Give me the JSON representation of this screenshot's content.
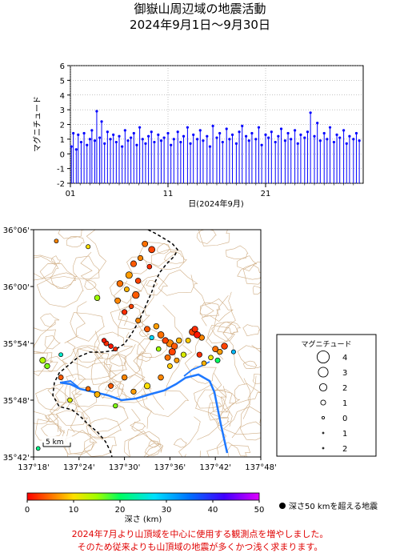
{
  "title": "御嶽山周辺域の地震活動",
  "period": "2024年9月1日～9月30日",
  "notes": [
    "2024年7月より山頂域を中心に使用する観測点を増やしました。",
    "そのため従来よりも山頂域の地震が多くかつ浅く求まります。"
  ],
  "colors": {
    "stem": "#0000ff",
    "river": "#1e78ff",
    "contour": "#c8a070",
    "note": "#e00000"
  },
  "chart_data": [
    {
      "type": "scatter",
      "name": "magnitude-time",
      "ylabel": "マグニチュード",
      "xlabel": "日(2024年9月)",
      "ylim": [
        -2,
        6
      ],
      "xlim": [
        1,
        31
      ],
      "y_ticks": [
        "-2",
        "-1",
        "0",
        "1",
        "2",
        "3",
        "4",
        "5",
        "6"
      ],
      "x_ticks": [
        "01",
        "11",
        "21"
      ],
      "x_tick_values": [
        1,
        11,
        21
      ],
      "events": [
        {
          "x": 1.1,
          "y": 0.5
        },
        {
          "x": 1.3,
          "y": 1.4
        },
        {
          "x": 1.6,
          "y": 0.3
        },
        {
          "x": 1.8,
          "y": 1.3
        },
        {
          "x": 2.1,
          "y": 0.8
        },
        {
          "x": 2.4,
          "y": 1.4
        },
        {
          "x": 2.7,
          "y": 0.6
        },
        {
          "x": 3.0,
          "y": 1.0
        },
        {
          "x": 3.2,
          "y": 1.6
        },
        {
          "x": 3.5,
          "y": 0.9
        },
        {
          "x": 3.7,
          "y": 2.9
        },
        {
          "x": 4.0,
          "y": 1.1
        },
        {
          "x": 4.2,
          "y": 2.2
        },
        {
          "x": 4.5,
          "y": 0.7
        },
        {
          "x": 4.8,
          "y": 1.5
        },
        {
          "x": 5.1,
          "y": 1.0
        },
        {
          "x": 5.4,
          "y": 1.3
        },
        {
          "x": 5.7,
          "y": 0.8
        },
        {
          "x": 6.0,
          "y": 1.2
        },
        {
          "x": 6.3,
          "y": 0.5
        },
        {
          "x": 6.6,
          "y": 1.6
        },
        {
          "x": 6.9,
          "y": 0.9
        },
        {
          "x": 7.2,
          "y": 1.1
        },
        {
          "x": 7.5,
          "y": 1.4
        },
        {
          "x": 7.8,
          "y": 0.6
        },
        {
          "x": 8.1,
          "y": 1.8
        },
        {
          "x": 8.4,
          "y": 1.0
        },
        {
          "x": 8.7,
          "y": 0.7
        },
        {
          "x": 9.0,
          "y": 1.2
        },
        {
          "x": 9.3,
          "y": 1.5
        },
        {
          "x": 9.6,
          "y": 0.8
        },
        {
          "x": 10.0,
          "y": 1.3
        },
        {
          "x": 10.3,
          "y": 0.9
        },
        {
          "x": 10.6,
          "y": 1.1
        },
        {
          "x": 11.0,
          "y": 1.4
        },
        {
          "x": 11.3,
          "y": 0.6
        },
        {
          "x": 11.6,
          "y": 1.0
        },
        {
          "x": 12.0,
          "y": 1.5
        },
        {
          "x": 12.3,
          "y": 0.8
        },
        {
          "x": 12.6,
          "y": 1.2
        },
        {
          "x": 13.0,
          "y": 1.8
        },
        {
          "x": 13.3,
          "y": 0.7
        },
        {
          "x": 13.6,
          "y": 1.3
        },
        {
          "x": 14.0,
          "y": 1.0
        },
        {
          "x": 14.3,
          "y": 1.6
        },
        {
          "x": 14.6,
          "y": 0.9
        },
        {
          "x": 15.0,
          "y": 1.2
        },
        {
          "x": 15.3,
          "y": 0.5
        },
        {
          "x": 15.6,
          "y": 1.9
        },
        {
          "x": 16.0,
          "y": 1.1
        },
        {
          "x": 16.3,
          "y": 1.4
        },
        {
          "x": 16.6,
          "y": 0.8
        },
        {
          "x": 17.0,
          "y": 1.7
        },
        {
          "x": 17.3,
          "y": 1.0
        },
        {
          "x": 17.6,
          "y": 1.3
        },
        {
          "x": 18.0,
          "y": 0.7
        },
        {
          "x": 18.3,
          "y": 1.5
        },
        {
          "x": 18.6,
          "y": 1.9
        },
        {
          "x": 19.0,
          "y": 1.2
        },
        {
          "x": 19.3,
          "y": 0.9
        },
        {
          "x": 19.6,
          "y": 1.4
        },
        {
          "x": 20.0,
          "y": 1.0
        },
        {
          "x": 20.3,
          "y": 1.8
        },
        {
          "x": 20.6,
          "y": 0.6
        },
        {
          "x": 21.0,
          "y": 1.3
        },
        {
          "x": 21.3,
          "y": 1.1
        },
        {
          "x": 21.6,
          "y": 1.5
        },
        {
          "x": 22.0,
          "y": 0.8
        },
        {
          "x": 22.3,
          "y": 1.2
        },
        {
          "x": 22.6,
          "y": 1.7
        },
        {
          "x": 23.0,
          "y": 0.9
        },
        {
          "x": 23.3,
          "y": 1.4
        },
        {
          "x": 23.6,
          "y": 1.0
        },
        {
          "x": 24.0,
          "y": 1.6
        },
        {
          "x": 24.3,
          "y": 0.7
        },
        {
          "x": 24.6,
          "y": 1.3
        },
        {
          "x": 25.0,
          "y": 1.1
        },
        {
          "x": 25.3,
          "y": 1.5
        },
        {
          "x": 25.6,
          "y": 2.8
        },
        {
          "x": 26.0,
          "y": 1.2
        },
        {
          "x": 26.3,
          "y": 2.1
        },
        {
          "x": 26.6,
          "y": 0.9
        },
        {
          "x": 27.0,
          "y": 1.4
        },
        {
          "x": 27.3,
          "y": 1.0
        },
        {
          "x": 27.6,
          "y": 1.8
        },
        {
          "x": 28.0,
          "y": 0.8
        },
        {
          "x": 28.3,
          "y": 1.3
        },
        {
          "x": 28.6,
          "y": 1.1
        },
        {
          "x": 29.0,
          "y": 1.6
        },
        {
          "x": 29.3,
          "y": 0.7
        },
        {
          "x": 29.6,
          "y": 1.2
        },
        {
          "x": 30.0,
          "y": 1.0
        },
        {
          "x": 30.3,
          "y": 1.4
        },
        {
          "x": 30.6,
          "y": 0.9
        }
      ]
    },
    {
      "type": "scatter",
      "name": "epicenter-map",
      "lon_range": [
        137.3,
        137.8
      ],
      "lat_range": [
        35.7,
        36.1
      ],
      "x_ticks": [
        "137°18'",
        "137°24'",
        "137°30'",
        "137°36'",
        "137°42'",
        "137°48'"
      ],
      "x_tick_values": [
        137.3,
        137.4,
        137.5,
        137.6,
        137.7,
        137.8
      ],
      "y_ticks": [
        "35°42'",
        "35°48'",
        "35°54'",
        "36°00'",
        "36°06'"
      ],
      "y_tick_values": [
        35.7,
        35.8,
        35.9,
        36.0,
        36.1
      ],
      "scale_bar": "5 km",
      "events": [
        {
          "lon": 137.545,
          "lat": 36.075,
          "depth": 5,
          "mag": 1.3
        },
        {
          "lon": 137.56,
          "lat": 36.065,
          "depth": 3,
          "mag": 1.6
        },
        {
          "lon": 137.535,
          "lat": 36.05,
          "depth": 6,
          "mag": 1.1
        },
        {
          "lon": 137.52,
          "lat": 36.04,
          "depth": 4,
          "mag": 1.4
        },
        {
          "lon": 137.555,
          "lat": 36.035,
          "depth": 2,
          "mag": 0.9
        },
        {
          "lon": 137.51,
          "lat": 36.02,
          "depth": 7,
          "mag": 1.7
        },
        {
          "lon": 137.53,
          "lat": 36.01,
          "depth": 3,
          "mag": 1.2
        },
        {
          "lon": 137.49,
          "lat": 36.005,
          "depth": 5,
          "mag": 1.5
        },
        {
          "lon": 137.505,
          "lat": 35.995,
          "depth": 8,
          "mag": 1.0
        },
        {
          "lon": 137.525,
          "lat": 35.985,
          "depth": 4,
          "mag": 1.8
        },
        {
          "lon": 137.485,
          "lat": 35.975,
          "depth": 6,
          "mag": 1.3
        },
        {
          "lon": 137.515,
          "lat": 35.965,
          "depth": 3,
          "mag": 0.8
        },
        {
          "lon": 137.5,
          "lat": 35.955,
          "depth": 2,
          "mag": 1.1
        },
        {
          "lon": 137.42,
          "lat": 36.07,
          "depth": 10,
          "mag": 0.7
        },
        {
          "lon": 137.35,
          "lat": 36.08,
          "depth": 6,
          "mag": 0.6
        },
        {
          "lon": 137.44,
          "lat": 35.98,
          "depth": 15,
          "mag": 1.2
        },
        {
          "lon": 137.32,
          "lat": 35.87,
          "depth": 14,
          "mag": 1.4
        },
        {
          "lon": 137.33,
          "lat": 35.86,
          "depth": 16,
          "mag": 1.1
        },
        {
          "lon": 137.36,
          "lat": 35.88,
          "depth": 25,
          "mag": 0.6
        },
        {
          "lon": 137.46,
          "lat": 35.9,
          "depth": 2,
          "mag": 1.0
        },
        {
          "lon": 137.47,
          "lat": 35.895,
          "depth": 1,
          "mag": 0.9
        },
        {
          "lon": 137.455,
          "lat": 35.905,
          "depth": 1,
          "mag": 0.8
        },
        {
          "lon": 137.48,
          "lat": 35.89,
          "depth": 2,
          "mag": 0.7
        },
        {
          "lon": 137.53,
          "lat": 35.94,
          "depth": 6,
          "mag": 1.0
        },
        {
          "lon": 137.55,
          "lat": 35.925,
          "depth": 4,
          "mag": 1.3
        },
        {
          "lon": 137.57,
          "lat": 35.93,
          "depth": 7,
          "mag": 1.2
        },
        {
          "lon": 137.58,
          "lat": 35.915,
          "depth": 5,
          "mag": 1.6
        },
        {
          "lon": 137.59,
          "lat": 35.905,
          "depth": 3,
          "mag": 1.4
        },
        {
          "lon": 137.6,
          "lat": 35.9,
          "depth": 6,
          "mag": 1.9
        },
        {
          "lon": 137.61,
          "lat": 35.895,
          "depth": 4,
          "mag": 1.5
        },
        {
          "lon": 137.62,
          "lat": 35.905,
          "depth": 8,
          "mag": 1.2
        },
        {
          "lon": 137.605,
          "lat": 35.885,
          "depth": 3,
          "mag": 1.7
        },
        {
          "lon": 137.595,
          "lat": 35.875,
          "depth": 5,
          "mag": 1.3
        },
        {
          "lon": 137.615,
          "lat": 35.87,
          "depth": 7,
          "mag": 1.0
        },
        {
          "lon": 137.63,
          "lat": 35.88,
          "depth": 12,
          "mag": 1.1
        },
        {
          "lon": 137.575,
          "lat": 35.89,
          "depth": 15,
          "mag": 0.9
        },
        {
          "lon": 137.65,
          "lat": 35.92,
          "depth": 3,
          "mag": 1.8
        },
        {
          "lon": 137.66,
          "lat": 35.915,
          "depth": 1,
          "mag": 1.6
        },
        {
          "lon": 137.655,
          "lat": 35.925,
          "depth": 2,
          "mag": 1.4
        },
        {
          "lon": 137.67,
          "lat": 35.91,
          "depth": 6,
          "mag": 1.2
        },
        {
          "lon": 137.64,
          "lat": 35.905,
          "depth": 9,
          "mag": 1.0
        },
        {
          "lon": 137.7,
          "lat": 35.89,
          "depth": 5,
          "mag": 1.3
        },
        {
          "lon": 137.71,
          "lat": 35.885,
          "depth": 7,
          "mag": 1.1
        },
        {
          "lon": 137.72,
          "lat": 35.895,
          "depth": 3,
          "mag": 1.5
        },
        {
          "lon": 137.705,
          "lat": 35.87,
          "depth": 20,
          "mag": 1.0
        },
        {
          "lon": 137.69,
          "lat": 35.875,
          "depth": 11,
          "mag": 0.9
        },
        {
          "lon": 137.74,
          "lat": 35.885,
          "depth": 30,
          "mag": 0.7
        },
        {
          "lon": 137.56,
          "lat": 35.91,
          "depth": 28,
          "mag": 0.8
        },
        {
          "lon": 137.5,
          "lat": 35.84,
          "depth": 6,
          "mag": 1.2
        },
        {
          "lon": 137.47,
          "lat": 35.825,
          "depth": 4,
          "mag": 1.0
        },
        {
          "lon": 137.44,
          "lat": 35.81,
          "depth": 8,
          "mag": 1.3
        },
        {
          "lon": 137.42,
          "lat": 35.82,
          "depth": 5,
          "mag": 0.9
        },
        {
          "lon": 137.52,
          "lat": 35.815,
          "depth": 7,
          "mag": 1.1
        },
        {
          "lon": 137.55,
          "lat": 35.825,
          "depth": 10,
          "mag": 1.4
        },
        {
          "lon": 137.58,
          "lat": 35.84,
          "depth": 6,
          "mag": 1.2
        },
        {
          "lon": 137.6,
          "lat": 35.86,
          "depth": 9,
          "mag": 1.0
        },
        {
          "lon": 137.48,
          "lat": 35.79,
          "depth": 16,
          "mag": 0.8
        },
        {
          "lon": 137.38,
          "lat": 35.8,
          "depth": 12,
          "mag": 0.9
        },
        {
          "lon": 137.36,
          "lat": 35.84,
          "depth": 4,
          "mag": 1.0
        },
        {
          "lon": 137.31,
          "lat": 35.715,
          "depth": 22,
          "mag": 0.6
        },
        {
          "lon": 137.665,
          "lat": 35.88,
          "depth": 2,
          "mag": 1.1
        },
        {
          "lon": 137.675,
          "lat": 35.865,
          "depth": 8,
          "mag": 0.9
        }
      ]
    }
  ],
  "legend": {
    "title": "マグニチュード",
    "items": [
      "4",
      "3",
      "2",
      "1",
      "0",
      "1",
      "2"
    ],
    "item_mags": [
      4,
      3,
      2,
      1,
      0,
      -1,
      -2
    ]
  },
  "colorbar": {
    "ticks": [
      "0",
      "10",
      "20",
      "30",
      "40",
      "50"
    ],
    "tick_values": [
      0,
      10,
      20,
      30,
      40,
      50
    ],
    "label": "深さ (km)",
    "deep_note": "深さ50 kmを超える地震"
  }
}
